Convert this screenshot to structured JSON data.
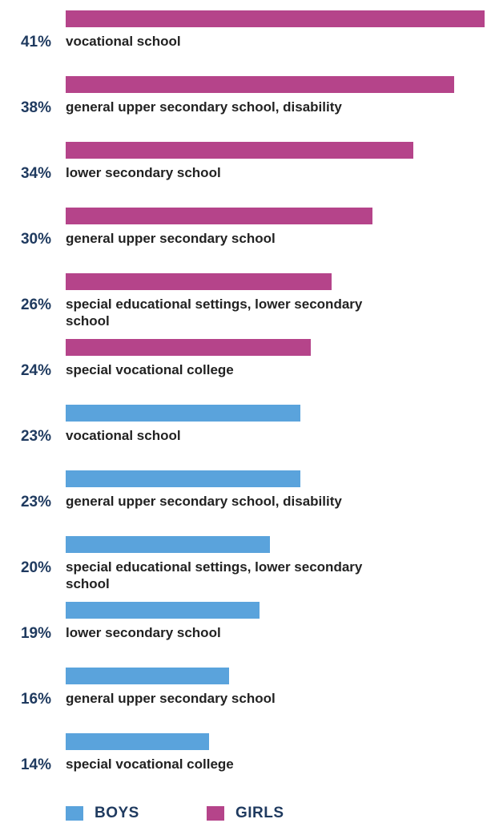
{
  "colors": {
    "girls": "#b5448a",
    "boys": "#5aa3dc",
    "percent_text": "#1f3a5f",
    "label_text": "#222222"
  },
  "legend": {
    "boys_label": "BOYS",
    "girls_label": "GIRLS"
  },
  "chart_data": {
    "type": "bar",
    "orientation": "horizontal",
    "xlim": [
      0,
      41
    ],
    "grid": false,
    "legend_position": "bottom",
    "bars": [
      {
        "series": "GIRLS",
        "percent_label": "41%",
        "label": "vocational school",
        "value": 41
      },
      {
        "series": "GIRLS",
        "percent_label": "38%",
        "label": "general upper secondary school, disability",
        "value": 38
      },
      {
        "series": "GIRLS",
        "percent_label": "34%",
        "label": "lower secondary school",
        "value": 34
      },
      {
        "series": "GIRLS",
        "percent_label": "30%",
        "label": "general upper secondary school",
        "value": 30
      },
      {
        "series": "GIRLS",
        "percent_label": "26%",
        "label": "special educational settings, lower secondary school",
        "value": 26
      },
      {
        "series": "GIRLS",
        "percent_label": "24%",
        "label": "special vocational college",
        "value": 24
      },
      {
        "series": "BOYS",
        "percent_label": "23%",
        "label": "vocational school",
        "value": 23
      },
      {
        "series": "BOYS",
        "percent_label": "23%",
        "label": "general upper secondary school, disability",
        "value": 23
      },
      {
        "series": "BOYS",
        "percent_label": "20%",
        "label": "special educational settings, lower secondary school",
        "value": 20
      },
      {
        "series": "BOYS",
        "percent_label": "19%",
        "label": "lower secondary school",
        "value": 19
      },
      {
        "series": "BOYS",
        "percent_label": "16%",
        "label": "general upper secondary school",
        "value": 16
      },
      {
        "series": "BOYS",
        "percent_label": "14%",
        "label": "special vocational college",
        "value": 14
      }
    ]
  }
}
